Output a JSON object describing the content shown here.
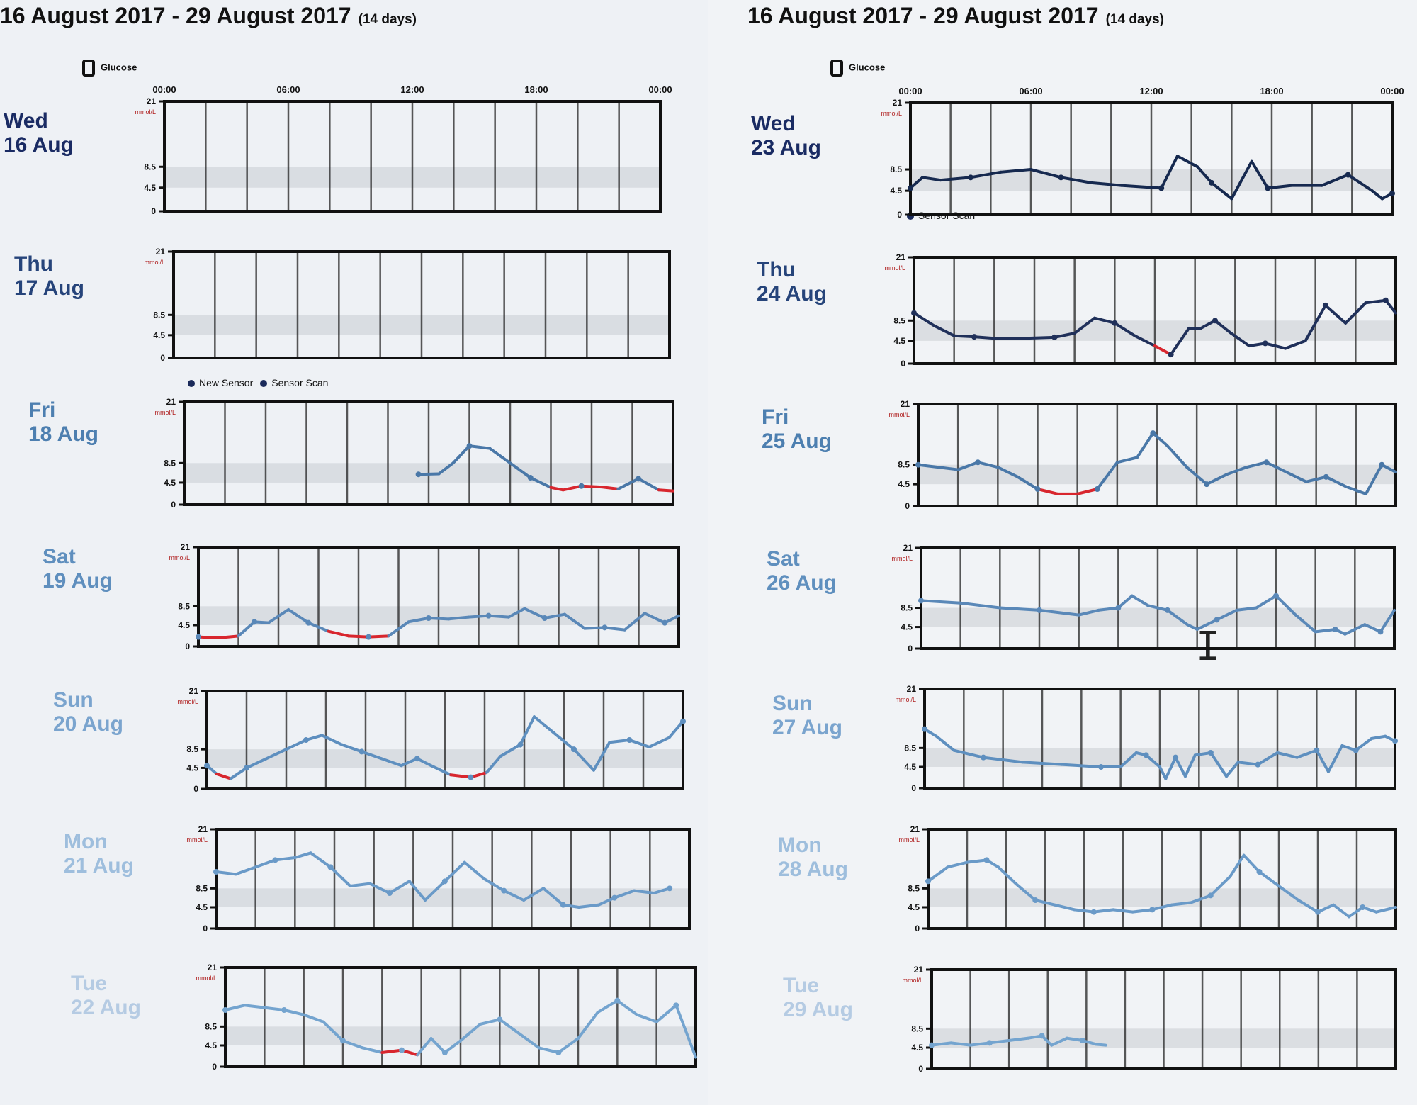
{
  "header": {
    "title": "16 August 2017 - 29 August 2017",
    "days": "(14 days)"
  },
  "legend": {
    "glucose": "Glucose",
    "new_sensor": "New Sensor",
    "sensor_scan": "Sensor Scan"
  },
  "axis": {
    "time_ticks": [
      "00:00",
      "06:00",
      "12:00",
      "18:00",
      "00:00"
    ],
    "y_ticks": [
      "21",
      "8.5",
      "4.5",
      "0"
    ],
    "unit": "mmol/L"
  },
  "colors": {
    "line": "#1d3566",
    "low": "#d8262e",
    "target_band": "#c9ccd2"
  },
  "chart_data": {
    "type": "line",
    "x_unit": "hour of day",
    "y_unit": "mmol/L",
    "ylim": [
      0,
      21
    ],
    "xlim": [
      0,
      24
    ],
    "target_range": [
      4.5,
      8.5
    ],
    "days": [
      {
        "weekday": "Wed",
        "date": "16 Aug",
        "points": []
      },
      {
        "weekday": "Thu",
        "date": "17 Aug",
        "points": []
      },
      {
        "weekday": "Fri",
        "date": "18 Aug",
        "points": [
          [
            11.5,
            6.2
          ],
          [
            12.5,
            6.3
          ],
          [
            13.2,
            8.5
          ],
          [
            14.0,
            12.0
          ],
          [
            15.0,
            11.5
          ],
          [
            16.0,
            8.5
          ],
          [
            17.0,
            5.5
          ],
          [
            18.0,
            3.5
          ],
          [
            18.6,
            3.0
          ],
          [
            19.5,
            3.8
          ],
          [
            20.5,
            3.6
          ],
          [
            21.3,
            3.2
          ],
          [
            22.3,
            5.3
          ],
          [
            23.3,
            3.0
          ],
          [
            24.0,
            2.8
          ]
        ]
      },
      {
        "weekday": "Sat",
        "date": "19 Aug",
        "points": [
          [
            0.0,
            2.0
          ],
          [
            1.0,
            1.8
          ],
          [
            2.0,
            2.2
          ],
          [
            2.8,
            5.2
          ],
          [
            3.5,
            5.0
          ],
          [
            4.5,
            7.8
          ],
          [
            5.5,
            5.0
          ],
          [
            6.5,
            3.2
          ],
          [
            7.5,
            2.2
          ],
          [
            8.5,
            2.0
          ],
          [
            9.5,
            2.2
          ],
          [
            10.5,
            5.2
          ],
          [
            11.5,
            6.0
          ],
          [
            12.5,
            5.8
          ],
          [
            13.5,
            6.2
          ],
          [
            14.5,
            6.5
          ],
          [
            15.5,
            6.2
          ],
          [
            16.3,
            8.0
          ],
          [
            17.3,
            6.0
          ],
          [
            18.3,
            6.8
          ],
          [
            19.3,
            3.8
          ],
          [
            20.3,
            4.0
          ],
          [
            21.3,
            3.5
          ],
          [
            22.3,
            7.0
          ],
          [
            23.3,
            5.0
          ],
          [
            24.0,
            6.5
          ]
        ]
      },
      {
        "weekday": "Sun",
        "date": "20 Aug",
        "points": [
          [
            0.0,
            5.0
          ],
          [
            0.5,
            3.2
          ],
          [
            1.2,
            2.2
          ],
          [
            2.0,
            4.5
          ],
          [
            3.0,
            6.5
          ],
          [
            4.0,
            8.5
          ],
          [
            5.0,
            10.5
          ],
          [
            5.8,
            11.5
          ],
          [
            6.8,
            9.5
          ],
          [
            7.8,
            8.0
          ],
          [
            8.8,
            6.5
          ],
          [
            9.8,
            5.0
          ],
          [
            10.6,
            6.5
          ],
          [
            11.3,
            5.0
          ],
          [
            12.3,
            3.0
          ],
          [
            13.3,
            2.5
          ],
          [
            14.1,
            3.5
          ],
          [
            14.8,
            7.0
          ],
          [
            15.8,
            9.5
          ],
          [
            16.5,
            15.5
          ],
          [
            17.5,
            12.0
          ],
          [
            18.5,
            8.5
          ],
          [
            19.5,
            4.0
          ],
          [
            20.3,
            10.0
          ],
          [
            21.3,
            10.5
          ],
          [
            22.3,
            9.0
          ],
          [
            23.3,
            11.0
          ],
          [
            24.0,
            14.5
          ]
        ]
      },
      {
        "weekday": "Mon",
        "date": "21 Aug",
        "points": [
          [
            0.0,
            12.0
          ],
          [
            1.0,
            11.5
          ],
          [
            2.0,
            13.0
          ],
          [
            3.0,
            14.5
          ],
          [
            4.0,
            15.0
          ],
          [
            4.8,
            16.0
          ],
          [
            5.8,
            13.0
          ],
          [
            6.8,
            9.0
          ],
          [
            7.8,
            9.5
          ],
          [
            8.8,
            7.5
          ],
          [
            9.8,
            10.0
          ],
          [
            10.6,
            6.0
          ],
          [
            11.6,
            10.0
          ],
          [
            12.6,
            14.0
          ],
          [
            13.6,
            10.5
          ],
          [
            14.6,
            8.0
          ],
          [
            15.6,
            6.0
          ],
          [
            16.6,
            8.5
          ],
          [
            17.6,
            5.0
          ],
          [
            18.4,
            4.5
          ],
          [
            19.4,
            5.0
          ],
          [
            20.2,
            6.5
          ],
          [
            21.2,
            8.0
          ],
          [
            22.2,
            7.5
          ],
          [
            23.0,
            8.5
          ]
        ]
      },
      {
        "weekday": "Tue",
        "date": "22 Aug",
        "points": [
          [
            0.0,
            12.0
          ],
          [
            1.0,
            13.0
          ],
          [
            2.0,
            12.5
          ],
          [
            3.0,
            12.0
          ],
          [
            4.0,
            11.0
          ],
          [
            5.0,
            9.5
          ],
          [
            6.0,
            5.5
          ],
          [
            7.0,
            4.0
          ],
          [
            8.0,
            3.0
          ],
          [
            9.0,
            3.5
          ],
          [
            9.8,
            2.5
          ],
          [
            10.5,
            6.0
          ],
          [
            11.2,
            3.0
          ],
          [
            12.0,
            5.5
          ],
          [
            13.0,
            9.0
          ],
          [
            14.0,
            10.0
          ],
          [
            15.0,
            7.0
          ],
          [
            16.0,
            4.0
          ],
          [
            17.0,
            3.0
          ],
          [
            18.0,
            6.0
          ],
          [
            19.0,
            11.5
          ],
          [
            20.0,
            14.0
          ],
          [
            21.0,
            11.0
          ],
          [
            22.0,
            9.5
          ],
          [
            23.0,
            13.0
          ],
          [
            24.0,
            2.0
          ]
        ]
      },
      {
        "weekday": "Wed",
        "date": "23 Aug",
        "points": [
          [
            0.0,
            5.0
          ],
          [
            0.6,
            7.0
          ],
          [
            1.5,
            6.5
          ],
          [
            3.0,
            7.0
          ],
          [
            4.5,
            8.0
          ],
          [
            6.0,
            8.5
          ],
          [
            7.5,
            7.0
          ],
          [
            9.0,
            6.0
          ],
          [
            10.5,
            5.5
          ],
          [
            12.5,
            5.0
          ],
          [
            13.3,
            11.0
          ],
          [
            14.3,
            9.0
          ],
          [
            15.0,
            6.0
          ],
          [
            16.0,
            3.0
          ],
          [
            17.0,
            10.0
          ],
          [
            17.8,
            5.0
          ],
          [
            19.0,
            5.5
          ],
          [
            20.5,
            5.5
          ],
          [
            21.8,
            7.5
          ],
          [
            23.0,
            4.5
          ],
          [
            23.5,
            3.0
          ],
          [
            24.0,
            4.0
          ]
        ]
      },
      {
        "weekday": "Thu",
        "date": "24 Aug",
        "points": [
          [
            0.0,
            10.0
          ],
          [
            1.0,
            7.5
          ],
          [
            2.0,
            5.5
          ],
          [
            3.0,
            5.3
          ],
          [
            4.0,
            5.0
          ],
          [
            5.5,
            5.0
          ],
          [
            7.0,
            5.2
          ],
          [
            8.0,
            6.0
          ],
          [
            9.0,
            9.0
          ],
          [
            10.0,
            8.0
          ],
          [
            11.0,
            5.5
          ],
          [
            12.0,
            3.5
          ],
          [
            12.8,
            1.8
          ],
          [
            13.7,
            7.0
          ],
          [
            14.3,
            7.0
          ],
          [
            15.0,
            8.5
          ],
          [
            15.8,
            6.0
          ],
          [
            16.7,
            3.5
          ],
          [
            17.5,
            4.0
          ],
          [
            18.5,
            3.0
          ],
          [
            19.5,
            4.5
          ],
          [
            20.5,
            11.5
          ],
          [
            21.5,
            8.0
          ],
          [
            22.5,
            12.0
          ],
          [
            23.5,
            12.5
          ],
          [
            24.0,
            10.0
          ]
        ]
      },
      {
        "weekday": "Fri",
        "date": "25 Aug",
        "points": [
          [
            0.0,
            8.5
          ],
          [
            1.0,
            8.0
          ],
          [
            2.0,
            7.5
          ],
          [
            3.0,
            9.0
          ],
          [
            4.0,
            8.0
          ],
          [
            5.0,
            6.0
          ],
          [
            6.0,
            3.5
          ],
          [
            7.0,
            2.5
          ],
          [
            8.0,
            2.5
          ],
          [
            9.0,
            3.5
          ],
          [
            10.0,
            9.0
          ],
          [
            11.0,
            10.0
          ],
          [
            11.8,
            15.0
          ],
          [
            12.5,
            12.5
          ],
          [
            13.5,
            8.0
          ],
          [
            14.5,
            4.5
          ],
          [
            15.5,
            6.5
          ],
          [
            16.5,
            8.0
          ],
          [
            17.5,
            9.0
          ],
          [
            18.5,
            7.0
          ],
          [
            19.5,
            5.0
          ],
          [
            20.5,
            6.0
          ],
          [
            21.5,
            4.0
          ],
          [
            22.5,
            2.5
          ],
          [
            23.3,
            8.5
          ],
          [
            24.0,
            7.0
          ]
        ]
      },
      {
        "weekday": "Sat",
        "date": "26 Aug",
        "points": [
          [
            0.0,
            10.0
          ],
          [
            2.0,
            9.5
          ],
          [
            4.0,
            8.5
          ],
          [
            6.0,
            8.0
          ],
          [
            8.0,
            7.0
          ],
          [
            9.0,
            8.0
          ],
          [
            10.0,
            8.5
          ],
          [
            10.7,
            11.0
          ],
          [
            11.5,
            9.0
          ],
          [
            12.5,
            8.0
          ],
          [
            13.5,
            5.0
          ],
          [
            14.0,
            4.0
          ],
          [
            15.0,
            6.0
          ],
          [
            16.0,
            8.0
          ],
          [
            17.0,
            8.5
          ],
          [
            18.0,
            11.0
          ],
          [
            19.0,
            7.0
          ],
          [
            20.0,
            3.5
          ],
          [
            21.0,
            4.0
          ],
          [
            21.5,
            3.0
          ],
          [
            22.5,
            5.0
          ],
          [
            23.3,
            3.5
          ],
          [
            24.0,
            8.0
          ]
        ]
      },
      {
        "weekday": "Sun",
        "date": "27 Aug",
        "points": [
          [
            0.0,
            12.5
          ],
          [
            0.6,
            11.0
          ],
          [
            1.5,
            8.0
          ],
          [
            3.0,
            6.5
          ],
          [
            5.0,
            5.5
          ],
          [
            7.0,
            5.0
          ],
          [
            9.0,
            4.5
          ],
          [
            10.0,
            4.5
          ],
          [
            10.8,
            7.5
          ],
          [
            11.3,
            7.0
          ],
          [
            12.0,
            4.5
          ],
          [
            12.3,
            2.0
          ],
          [
            12.8,
            6.5
          ],
          [
            13.3,
            2.5
          ],
          [
            13.8,
            7.0
          ],
          [
            14.6,
            7.5
          ],
          [
            15.4,
            2.5
          ],
          [
            16.0,
            5.5
          ],
          [
            17.0,
            5.0
          ],
          [
            18.0,
            7.5
          ],
          [
            19.0,
            6.5
          ],
          [
            20.0,
            8.0
          ],
          [
            20.6,
            3.5
          ],
          [
            21.3,
            9.0
          ],
          [
            22.0,
            8.0
          ],
          [
            22.8,
            10.5
          ],
          [
            23.5,
            11.0
          ],
          [
            24.0,
            10.0
          ]
        ]
      },
      {
        "weekday": "Mon",
        "date": "28 Aug",
        "points": [
          [
            0.0,
            10.0
          ],
          [
            1.0,
            13.0
          ],
          [
            2.0,
            14.0
          ],
          [
            3.0,
            14.5
          ],
          [
            3.6,
            13.0
          ],
          [
            4.5,
            9.5
          ],
          [
            5.5,
            6.0
          ],
          [
            6.5,
            5.0
          ],
          [
            7.5,
            4.0
          ],
          [
            8.5,
            3.5
          ],
          [
            9.5,
            4.0
          ],
          [
            10.5,
            3.5
          ],
          [
            11.5,
            4.0
          ],
          [
            12.5,
            5.0
          ],
          [
            13.5,
            5.5
          ],
          [
            14.5,
            7.0
          ],
          [
            15.5,
            11.0
          ],
          [
            16.2,
            15.5
          ],
          [
            17.0,
            12.0
          ],
          [
            18.0,
            9.0
          ],
          [
            19.0,
            6.0
          ],
          [
            20.0,
            3.5
          ],
          [
            20.8,
            5.0
          ],
          [
            21.6,
            2.5
          ],
          [
            22.3,
            4.5
          ],
          [
            23.0,
            3.5
          ],
          [
            24.0,
            4.5
          ]
        ]
      },
      {
        "weekday": "Tue",
        "date": "29 Aug",
        "points": [
          [
            0.0,
            5.0
          ],
          [
            1.0,
            5.5
          ],
          [
            2.0,
            5.0
          ],
          [
            3.0,
            5.5
          ],
          [
            4.0,
            6.0
          ],
          [
            5.0,
            6.5
          ],
          [
            5.7,
            7.0
          ],
          [
            6.2,
            5.0
          ],
          [
            7.0,
            6.5
          ],
          [
            7.8,
            6.0
          ],
          [
            8.5,
            5.2
          ],
          [
            9.0,
            5.0
          ]
        ]
      }
    ]
  }
}
